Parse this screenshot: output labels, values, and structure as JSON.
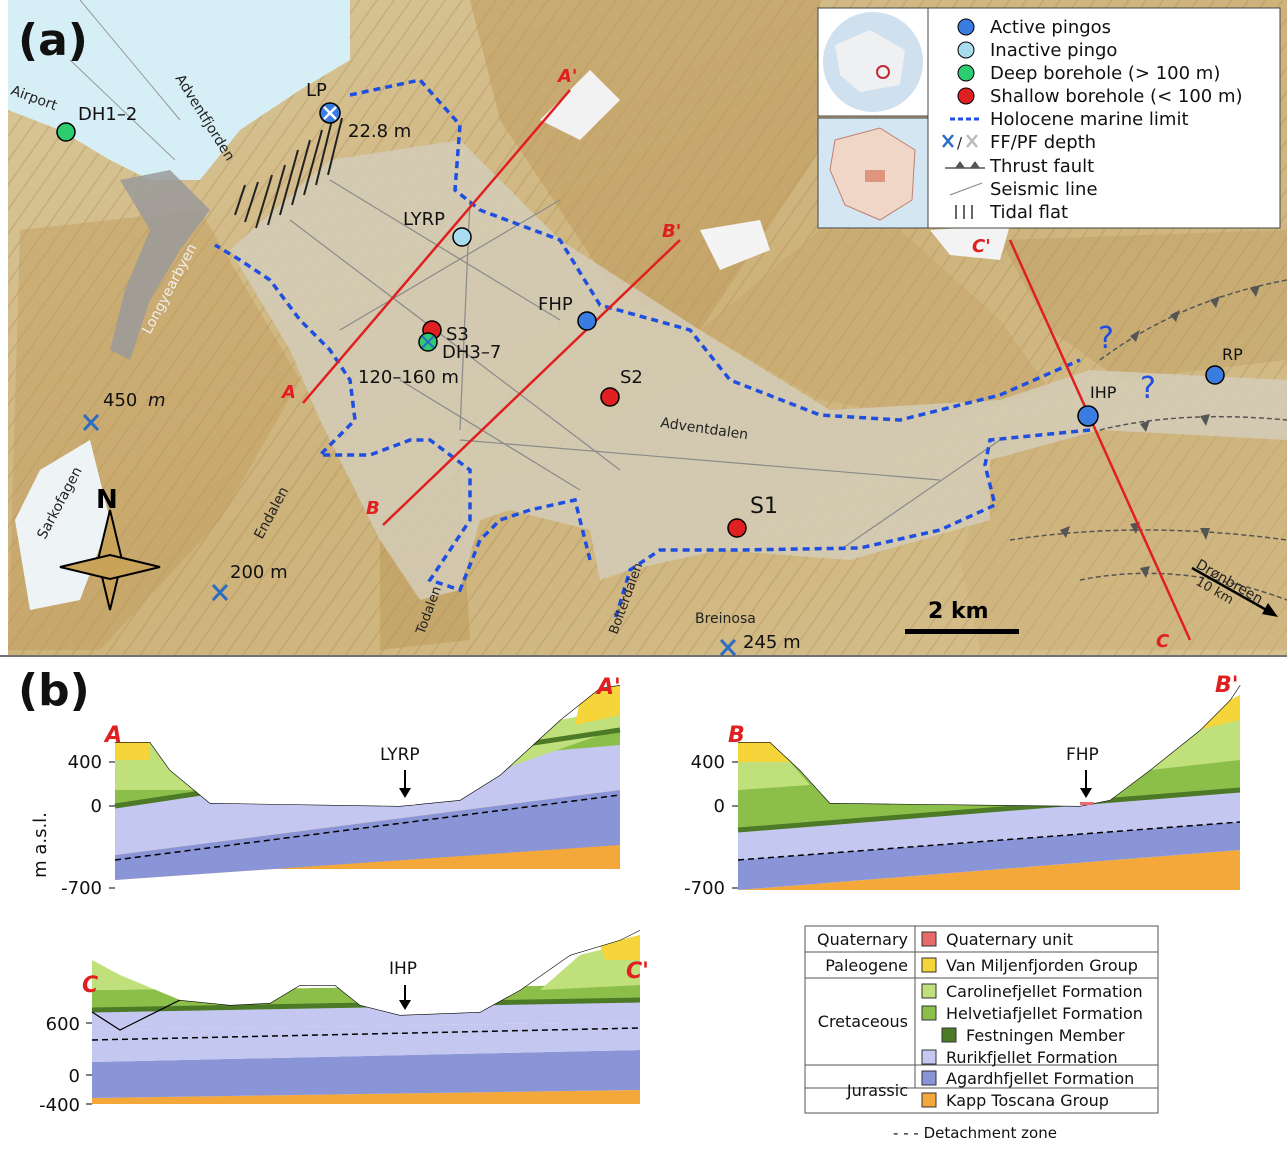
{
  "panel_a": {
    "label": "(a)",
    "place_names": {
      "airport": "Airport",
      "adventfjorden": "Adventfjorden",
      "longyearbyen": "Longyearbyen",
      "sarkofagen": "Sarkofagen",
      "endalen": "Endalen",
      "todalen": "Todalen",
      "bolterdalen": "Bolterdalen",
      "breinosa": "Breinosa",
      "adventdalen": "Adventdalen",
      "dronbreen": "Drønbreen",
      "dronbreen_dist": "10 km"
    },
    "sites": {
      "dh12": "DH1–2",
      "lp": "LP",
      "lp_depth": "22.8 m",
      "lyrp": "LYRP",
      "fhp": "FHP",
      "s3": "S3",
      "dh37": "DH3–7",
      "dh37_depth": "120–160 m",
      "s2": "S2",
      "s1": "S1",
      "ihp": "IHP",
      "rp": "RP",
      "depth_450": "450",
      "depth_450_unit": "m",
      "depth_200": "200 m",
      "depth_245": "245 m"
    },
    "profile_ends": {
      "a": "A",
      "a2": "A'",
      "b": "B",
      "b2": "B'",
      "c": "C",
      "c2": "C'"
    },
    "uncertain": "?",
    "north": "N",
    "scale": "2 km",
    "legend": [
      {
        "symbol": "circle",
        "color": "#3a7de0",
        "label": "Active pingos"
      },
      {
        "symbol": "circle",
        "color": "#a8dcef",
        "label": "Inactive pingo"
      },
      {
        "symbol": "circle",
        "color": "#2ecc71",
        "label": "Deep borehole (> 100 m)"
      },
      {
        "symbol": "circle",
        "color": "#e02020",
        "label": "Shallow borehole (< 100 m)"
      },
      {
        "symbol": "dashed",
        "color": "#1f4fe0",
        "label": "Holocene marine limit"
      },
      {
        "symbol": "cross",
        "color": "#2b6cc4",
        "label": "FF/PF depth"
      },
      {
        "symbol": "thrust",
        "color": "#555555",
        "label": "Thrust fault"
      },
      {
        "symbol": "line",
        "color": "#888888",
        "label": "Seismic line"
      },
      {
        "symbol": "tidal",
        "color": "#333333",
        "label": "Tidal flat"
      }
    ]
  },
  "panel_b": {
    "label": "(b)",
    "y_axis_label": "m a.s.l.",
    "profile_ab": {
      "ticks": [
        "400",
        "0",
        "-700"
      ]
    },
    "profile_c": {
      "ticks": [
        "600",
        "0",
        "-400"
      ]
    },
    "markers": {
      "lyrp": "LYRP",
      "fhp": "FHP",
      "ihp": "IHP"
    },
    "legend": {
      "groups": [
        {
          "age": "Quaternary",
          "units": [
            {
              "name": "Quaternary unit",
              "color": "#e86a6a"
            }
          ]
        },
        {
          "age": "Paleogene",
          "units": [
            {
              "name": "Van Miljenfjorden Group",
              "color": "#f5d53a"
            }
          ]
        },
        {
          "age": "Cretaceous",
          "units": [
            {
              "name": "Carolinefjellet Formation",
              "color": "#bfe07a"
            },
            {
              "name": "Helvetiafjellet Formation",
              "color": "#8cbf4a"
            },
            {
              "name": "Festningen Member",
              "color": "#4d7a26"
            },
            {
              "name": "Rurikfjellet Formation",
              "color": "#c4c8f0"
            }
          ]
        },
        {
          "age": "Jurassic",
          "units": [
            {
              "name": "Agardhfjellet Formation",
              "color": "#8a95d8"
            },
            {
              "name": "Kapp Toscana Group",
              "color": "#f5a83a"
            }
          ]
        }
      ],
      "detachment": "- - - Detachment zone"
    }
  }
}
